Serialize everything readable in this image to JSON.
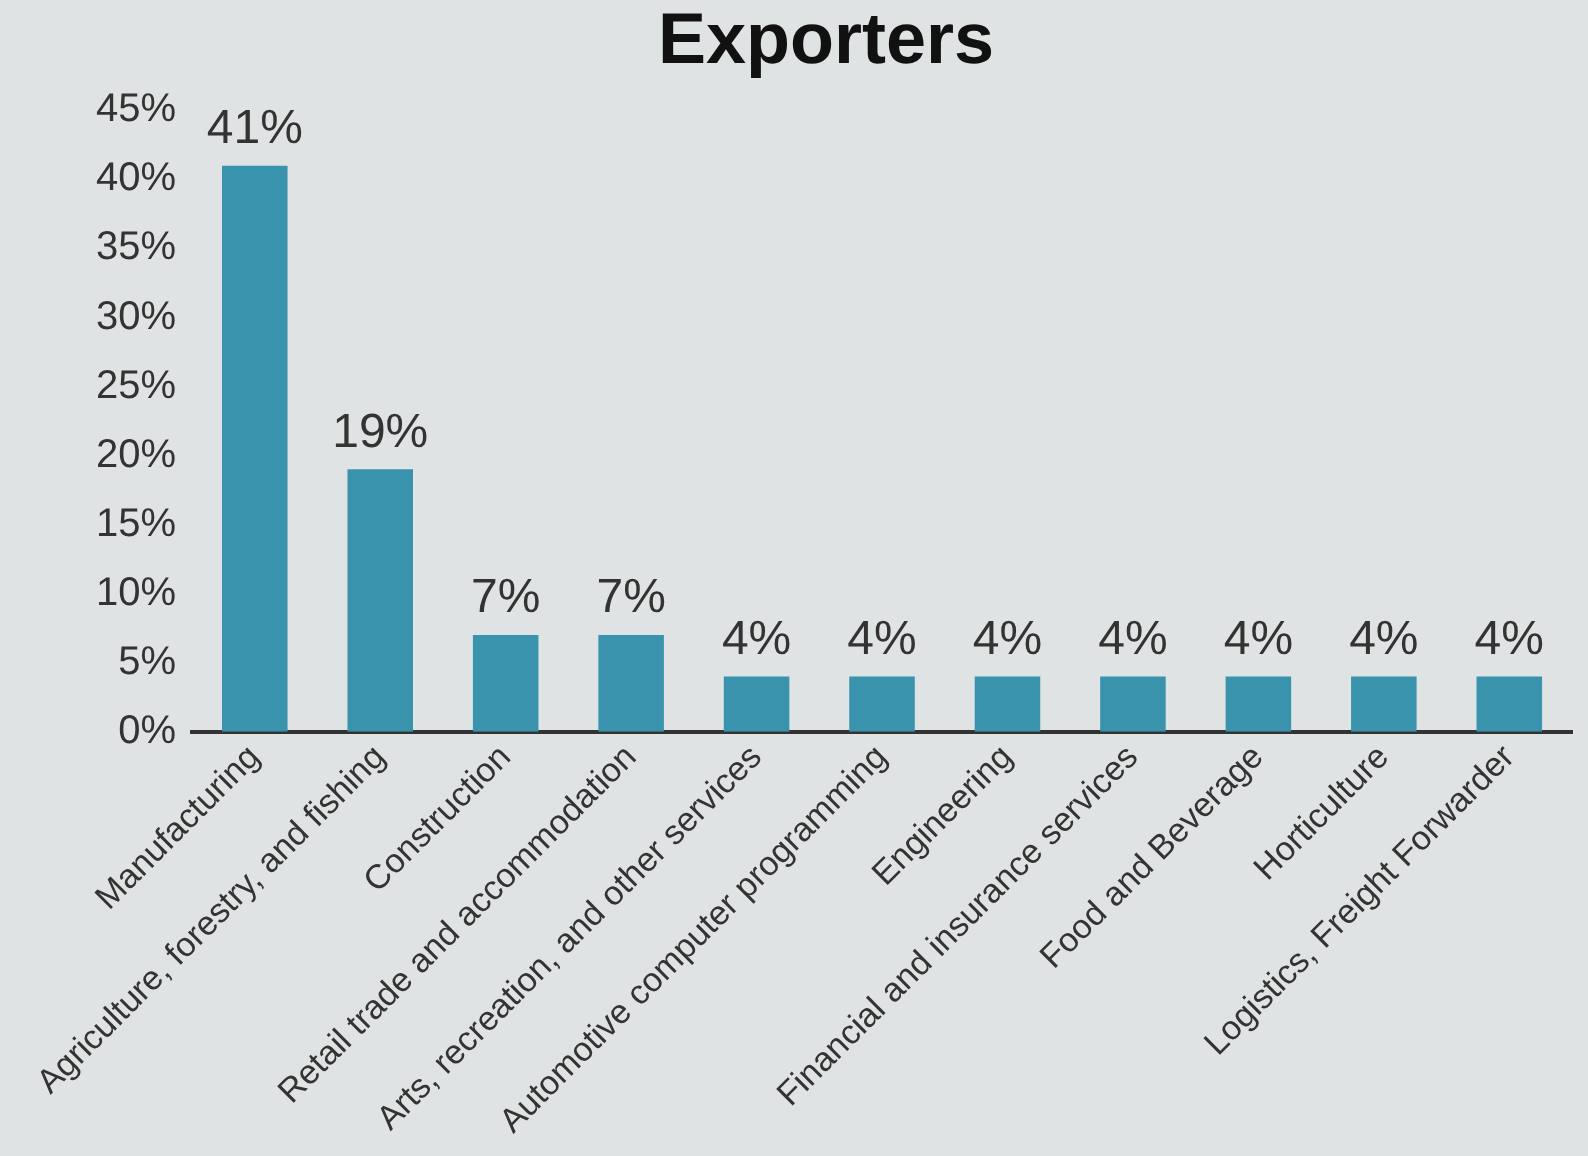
{
  "chart_data": {
    "type": "bar",
    "title": "Exporters",
    "categories": [
      "Manufacturing",
      "Agriculture, forestry, and fishing",
      "Construction",
      "Retail trade and accommodation",
      "Arts, recreation, and other services",
      "Automotive computer programming",
      "Engineering",
      "Financial and insurance services",
      "Food and Beverage",
      "Horticulture",
      "Logistics, Freight Forwarder"
    ],
    "values": [
      41,
      19,
      7,
      7,
      4,
      4,
      4,
      4,
      4,
      4,
      4
    ],
    "value_labels": [
      "41%",
      "19%",
      "7%",
      "7%",
      "4%",
      "4%",
      "4%",
      "4%",
      "4%",
      "4%",
      "4%"
    ],
    "color": "#3a93ad",
    "ylim": [
      0,
      45
    ],
    "yticks": [
      {
        "value": 0,
        "label": "0%"
      },
      {
        "value": 5,
        "label": "5%"
      },
      {
        "value": 10,
        "label": "10%"
      },
      {
        "value": 15,
        "label": "15%"
      },
      {
        "value": 20,
        "label": "20%"
      },
      {
        "value": 25,
        "label": "25%"
      },
      {
        "value": 30,
        "label": "30%"
      },
      {
        "value": 35,
        "label": "35%"
      },
      {
        "value": 40,
        "label": "40%"
      },
      {
        "value": 45,
        "label": "45%"
      }
    ],
    "grid": false,
    "legend": false
  }
}
